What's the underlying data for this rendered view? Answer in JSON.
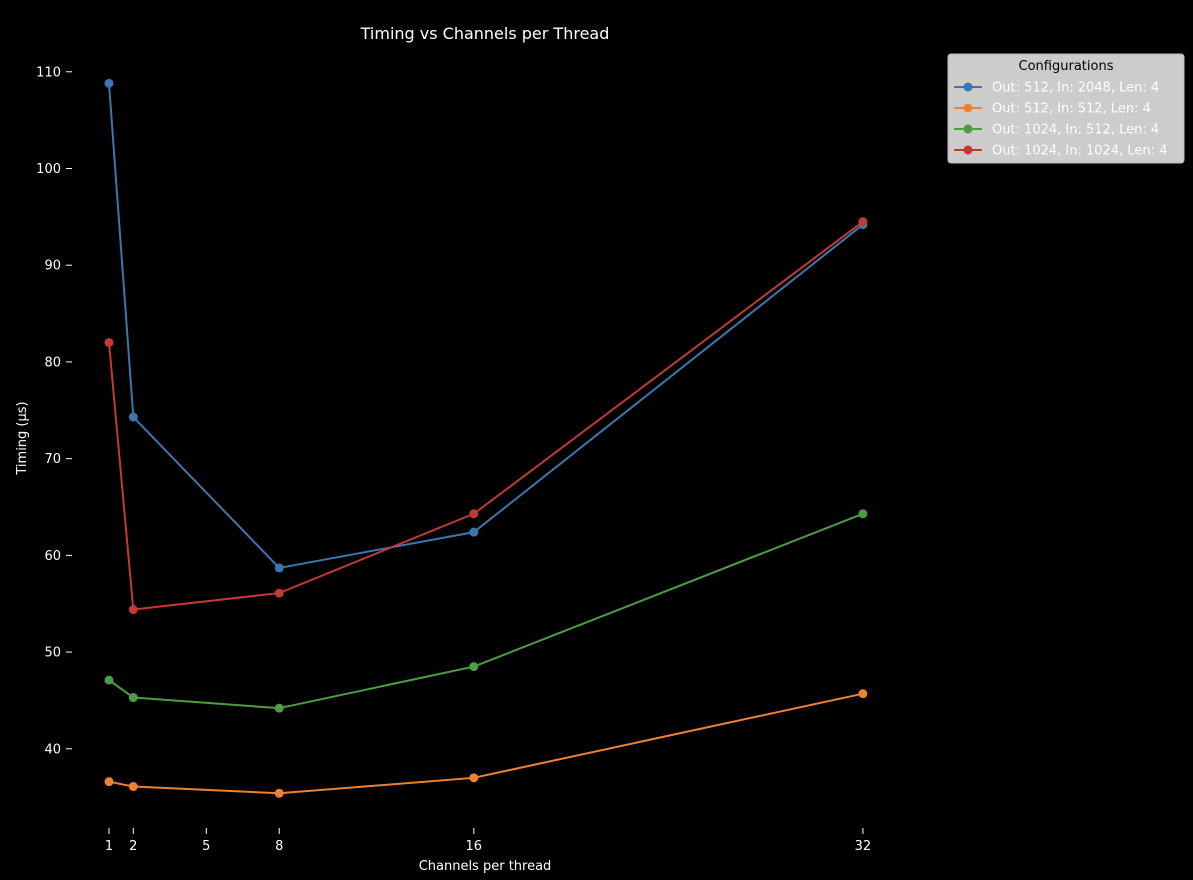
{
  "chart_data": {
    "type": "line",
    "title": "Timing vs Channels per Thread",
    "xlabel": "Channels per thread",
    "ylabel": "Timing (µs)",
    "x": [
      1,
      2,
      8,
      16,
      32
    ],
    "xticks": [
      1,
      2,
      5,
      8,
      16,
      32
    ],
    "yticks": [
      40,
      50,
      60,
      70,
      80,
      90,
      100,
      110
    ],
    "xlim": [
      0.5,
      32.5
    ],
    "ylim": [
      32,
      112
    ],
    "grid": false,
    "legend": {
      "title": "Configurations",
      "placement": "top-right, outside plot area"
    },
    "series": [
      {
        "name": "Out: 512, In: 2048, Len: 4",
        "color": "#3d76ad",
        "values": [
          108.8,
          74.3,
          58.7,
          62.4,
          94.2
        ]
      },
      {
        "name": "Out: 512, In: 512, Len: 4",
        "color": "#ee8233",
        "values": [
          36.6,
          36.1,
          35.4,
          37.0,
          45.7
        ]
      },
      {
        "name": "Out: 1024, In: 512, Len: 4",
        "color": "#4d9d43",
        "values": [
          47.1,
          45.3,
          44.2,
          48.5,
          64.3
        ]
      },
      {
        "name": "Out: 1024, In: 1024, Len: 4",
        "color": "#c13a33",
        "values": [
          82.0,
          54.4,
          56.1,
          64.3,
          94.5
        ]
      }
    ]
  }
}
